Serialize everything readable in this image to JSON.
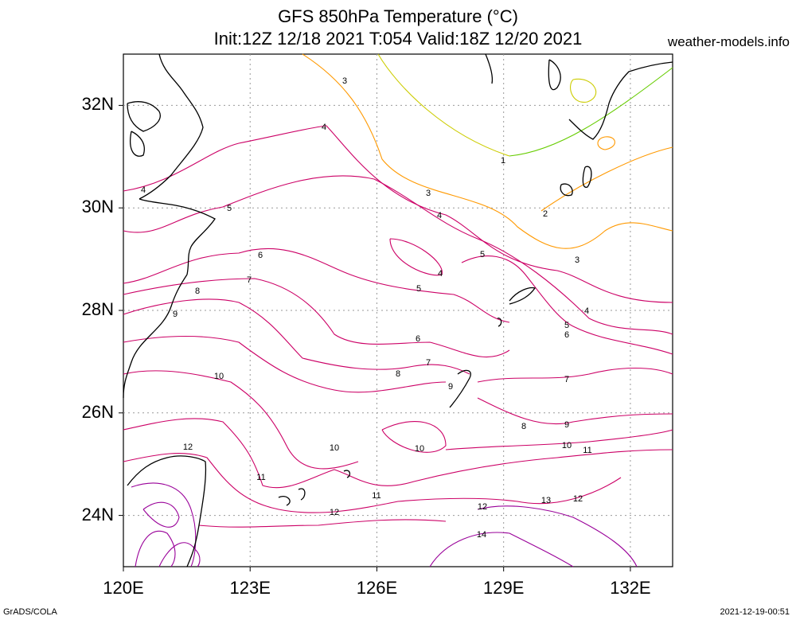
{
  "header": {
    "title_line1": "GFS 850hPa Temperature (°C)",
    "title_line2": "Init:12Z 12/18 2021 T:054 Valid:18Z 12/20 2021",
    "site": "weather-models.info"
  },
  "footer": {
    "credit": "GrADS/COLA",
    "timestamp": "2021-12-19-00:51"
  },
  "axes": {
    "lat_labels": [
      "32N",
      "30N",
      "28N",
      "26N",
      "24N"
    ],
    "lon_labels": [
      "120E",
      "123E",
      "126E",
      "129E",
      "132E"
    ],
    "lat_range": [
      23,
      33
    ],
    "lon_range": [
      120,
      133
    ]
  },
  "contour_labels": [
    "1",
    "2",
    "3",
    "3",
    "3",
    "4",
    "4",
    "4",
    "4",
    "5",
    "5",
    "5",
    "5",
    "6",
    "6",
    "6",
    "7",
    "7",
    "7",
    "8",
    "8",
    "8",
    "9",
    "9",
    "9",
    "10",
    "10",
    "10",
    "10",
    "11",
    "11",
    "11",
    "12",
    "12",
    "12",
    "12",
    "13",
    "14",
    "4"
  ],
  "colors": {
    "cold": "#66cc00",
    "cool": "#cccc00",
    "mid": "#ff9900",
    "warm": "#cc0066",
    "hot": "#990099"
  }
}
